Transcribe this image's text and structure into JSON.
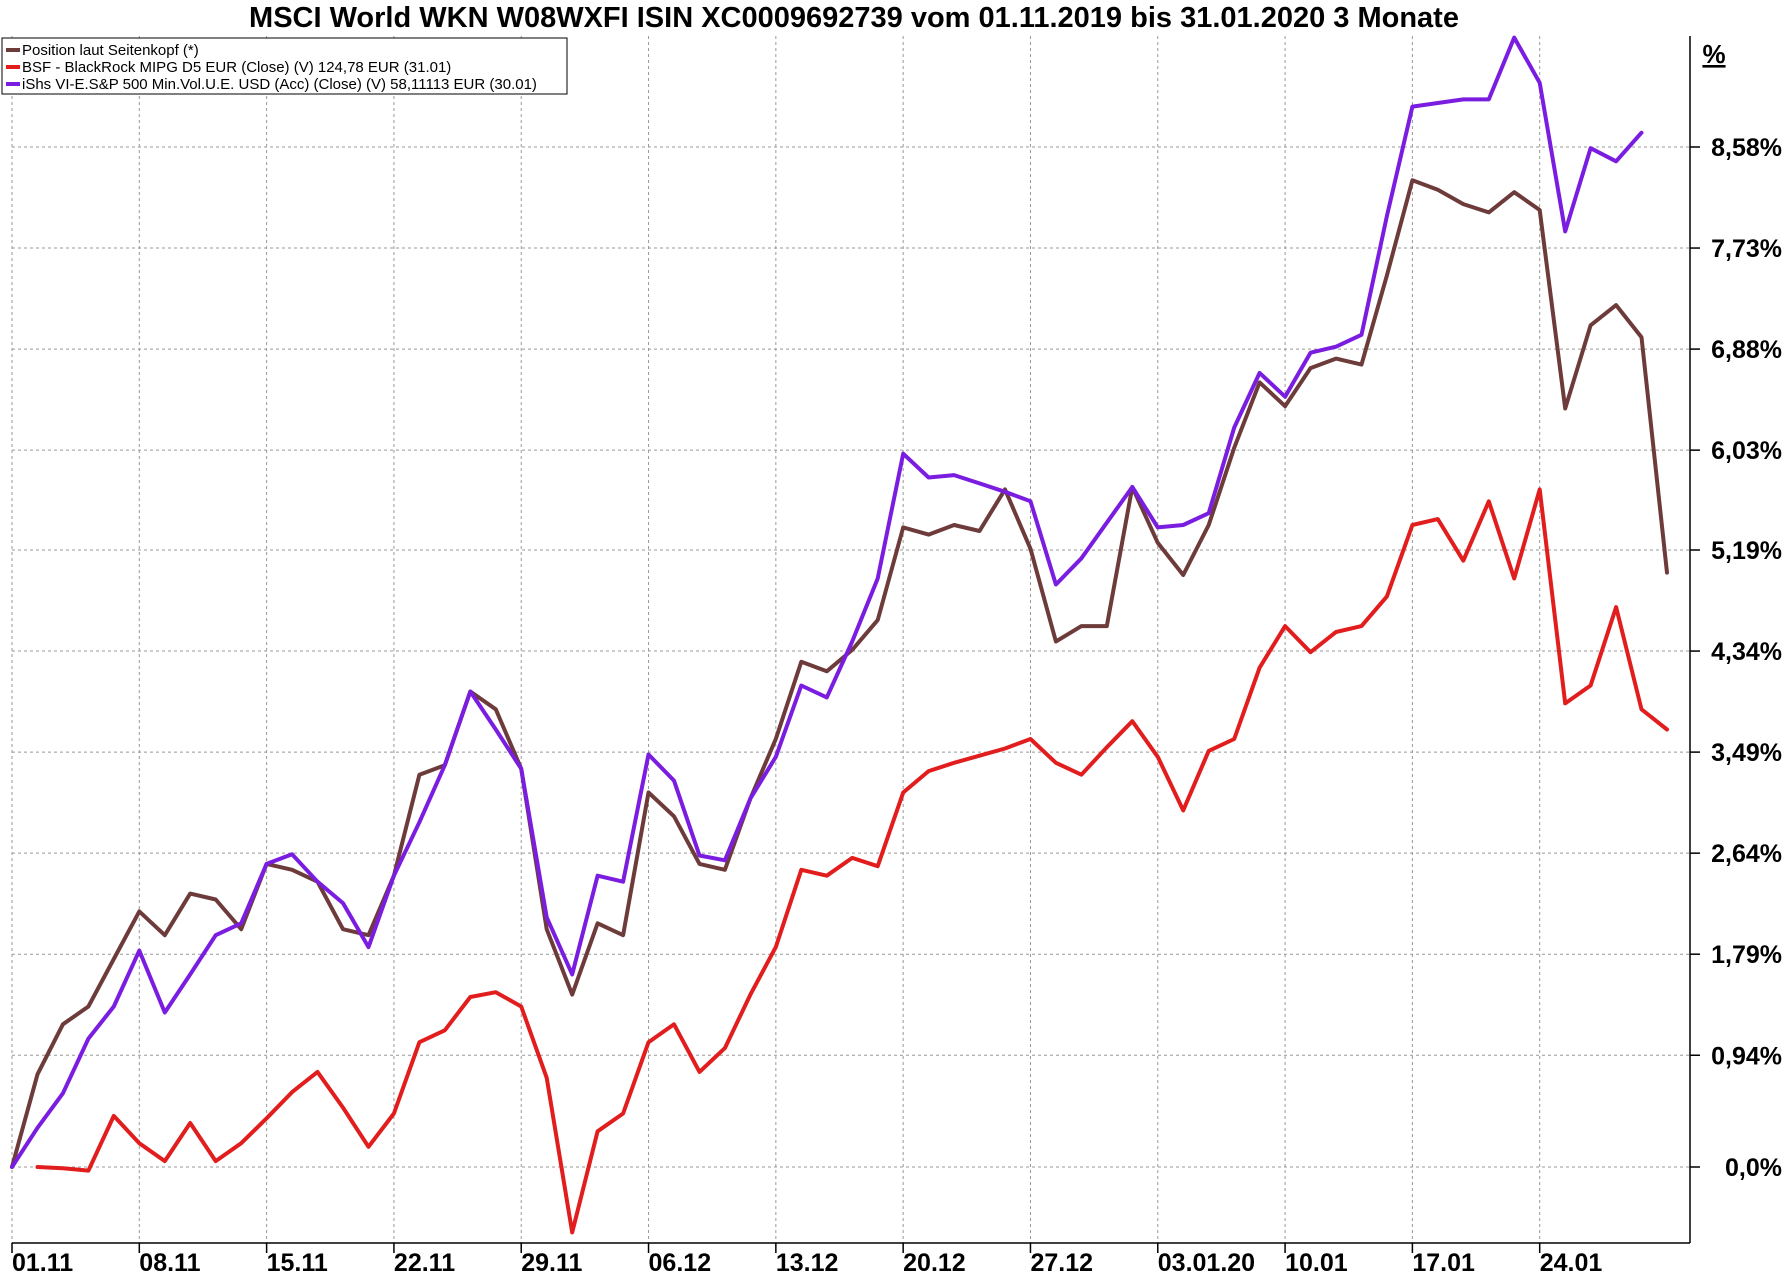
{
  "chart_data": {
    "type": "line",
    "title": "MSCI World WKN W08WXFI ISIN XC0009692739 vom 01.11.2019 bis 31.01.2020 3 Monate",
    "yunit": "%",
    "ylim": [
      -0.55,
      9.9
    ],
    "yticks": [
      0.0,
      0.94,
      1.79,
      2.64,
      3.49,
      4.34,
      5.19,
      6.03,
      6.88,
      7.73,
      8.58
    ],
    "ytick_labels": [
      "0,0%",
      "0,94%",
      "1,79%",
      "2,64%",
      "3,49%",
      "4,34%",
      "5,19%",
      "6,03%",
      "6,88%",
      "7,73%",
      "8,58%"
    ],
    "xticks": [
      {
        "label": "01.11",
        "x": 0
      },
      {
        "label": "08.11",
        "x": 5
      },
      {
        "label": "15.11",
        "x": 10
      },
      {
        "label": "22.11",
        "x": 15
      },
      {
        "label": "29.11",
        "x": 20
      },
      {
        "label": "06.12",
        "x": 25
      },
      {
        "label": "13.12",
        "x": 30
      },
      {
        "label": "20.12",
        "x": 35
      },
      {
        "label": "27.12",
        "x": 40
      },
      {
        "label": "03.01.20",
        "x": 45
      },
      {
        "label": "10.01",
        "x": 50
      },
      {
        "label": "17.01",
        "x": 55
      },
      {
        "label": "24.01",
        "x": 60
      }
    ],
    "xlim": [
      0,
      65
    ],
    "grid": true,
    "legend_position": "top-left",
    "series": [
      {
        "name": "Position laut Seitenkopf (*)",
        "color": "#6e3b3b",
        "points": [
          [
            0,
            0.0
          ],
          [
            1,
            0.78
          ],
          [
            2,
            1.2
          ],
          [
            3,
            1.35
          ],
          [
            4,
            1.75
          ],
          [
            5,
            2.15
          ],
          [
            6,
            1.95
          ],
          [
            7,
            2.3
          ],
          [
            8,
            2.25
          ],
          [
            9,
            2.0
          ],
          [
            10,
            2.55
          ],
          [
            11,
            2.5
          ],
          [
            12,
            2.4
          ],
          [
            13,
            2.0
          ],
          [
            14,
            1.95
          ],
          [
            15,
            2.45
          ],
          [
            16,
            3.3
          ],
          [
            17,
            3.38
          ],
          [
            18,
            4.0
          ],
          [
            19,
            3.85
          ],
          [
            20,
            3.35
          ],
          [
            21,
            2.0
          ],
          [
            22,
            1.45
          ],
          [
            23,
            2.05
          ],
          [
            24,
            1.95
          ],
          [
            25,
            3.15
          ],
          [
            26,
            2.95
          ],
          [
            27,
            2.55
          ],
          [
            28,
            2.5
          ],
          [
            29,
            3.1
          ],
          [
            30,
            3.6
          ],
          [
            31,
            4.25
          ],
          [
            32,
            4.17
          ],
          [
            33,
            4.35
          ],
          [
            34,
            4.6
          ],
          [
            35,
            5.38
          ],
          [
            36,
            5.32
          ],
          [
            37,
            5.4
          ],
          [
            38,
            5.35
          ],
          [
            39,
            5.7
          ],
          [
            40,
            5.2
          ],
          [
            41,
            4.42
          ],
          [
            42,
            4.55
          ],
          [
            43,
            4.55
          ],
          [
            44,
            5.72
          ],
          [
            45,
            5.25
          ],
          [
            46,
            4.98
          ],
          [
            47,
            5.4
          ],
          [
            48,
            6.05
          ],
          [
            49,
            6.6
          ],
          [
            50,
            6.4
          ],
          [
            51,
            6.72
          ],
          [
            52,
            6.8
          ],
          [
            53,
            6.75
          ],
          [
            54,
            7.5
          ],
          [
            55,
            8.3
          ],
          [
            56,
            8.22
          ],
          [
            57,
            8.1
          ],
          [
            58,
            8.03
          ],
          [
            59,
            8.2
          ],
          [
            60,
            8.05
          ],
          [
            61,
            6.38
          ],
          [
            62,
            7.08
          ],
          [
            63,
            7.25
          ],
          [
            64,
            6.98
          ],
          [
            65,
            5.0
          ]
        ]
      },
      {
        "name": "BSF - BlackRock MIPG D5 EUR (Close) (V) 124,78 EUR (31.01)",
        "color": "#e21d1d",
        "points": [
          [
            1,
            0.0
          ],
          [
            2,
            -0.01
          ],
          [
            3,
            -0.03
          ],
          [
            4,
            0.43
          ],
          [
            5,
            0.2
          ],
          [
            6,
            0.05
          ],
          [
            7,
            0.37
          ],
          [
            8,
            0.05
          ],
          [
            9,
            0.2
          ],
          [
            10,
            0.41
          ],
          [
            11,
            0.63
          ],
          [
            12,
            0.8
          ],
          [
            13,
            0.5
          ],
          [
            14,
            0.17
          ],
          [
            15,
            0.45
          ],
          [
            16,
            1.05
          ],
          [
            17,
            1.15
          ],
          [
            18,
            1.43
          ],
          [
            19,
            1.47
          ],
          [
            20,
            1.35
          ],
          [
            21,
            0.75
          ],
          [
            22,
            -0.55
          ],
          [
            23,
            0.3
          ],
          [
            24,
            0.45
          ],
          [
            25,
            1.05
          ],
          [
            26,
            1.2
          ],
          [
            27,
            0.8
          ],
          [
            28,
            1.0
          ],
          [
            29,
            1.45
          ],
          [
            30,
            1.85
          ],
          [
            31,
            2.5
          ],
          [
            32,
            2.45
          ],
          [
            33,
            2.6
          ],
          [
            34,
            2.53
          ],
          [
            35,
            3.15
          ],
          [
            36,
            3.33
          ],
          [
            37,
            3.4
          ],
          [
            38,
            3.46
          ],
          [
            39,
            3.52
          ],
          [
            40,
            3.6
          ],
          [
            41,
            3.4
          ],
          [
            42,
            3.3
          ],
          [
            43,
            3.53
          ],
          [
            44,
            3.75
          ],
          [
            45,
            3.45
          ],
          [
            46,
            3.0
          ],
          [
            47,
            3.5
          ],
          [
            48,
            3.6
          ],
          [
            49,
            4.2
          ],
          [
            50,
            4.55
          ],
          [
            51,
            4.33
          ],
          [
            52,
            4.5
          ],
          [
            53,
            4.55
          ],
          [
            54,
            4.8
          ],
          [
            55,
            5.4
          ],
          [
            56,
            5.45
          ],
          [
            57,
            5.1
          ],
          [
            58,
            5.6
          ],
          [
            59,
            4.95
          ],
          [
            60,
            5.7
          ],
          [
            61,
            3.9
          ],
          [
            62,
            4.05
          ],
          [
            63,
            4.71
          ],
          [
            64,
            3.85
          ],
          [
            65,
            3.68
          ]
        ]
      },
      {
        "name": "iShs VI-E.S&P 500 Min.Vol.U.E. USD (Acc) (Close) (V) 58,11113 EUR (30.01)",
        "color": "#7a1de0",
        "points": [
          [
            0,
            0.0
          ],
          [
            1,
            0.33
          ],
          [
            2,
            0.62
          ],
          [
            3,
            1.08
          ],
          [
            4,
            1.35
          ],
          [
            5,
            1.82
          ],
          [
            6,
            1.3
          ],
          [
            7,
            1.62
          ],
          [
            8,
            1.95
          ],
          [
            9,
            2.05
          ],
          [
            10,
            2.55
          ],
          [
            11,
            2.63
          ],
          [
            12,
            2.4
          ],
          [
            13,
            2.22
          ],
          [
            14,
            1.85
          ],
          [
            15,
            2.45
          ],
          [
            16,
            2.9
          ],
          [
            17,
            3.38
          ],
          [
            18,
            4.0
          ],
          [
            19,
            3.68
          ],
          [
            20,
            3.35
          ],
          [
            21,
            2.1
          ],
          [
            22,
            1.62
          ],
          [
            23,
            2.45
          ],
          [
            24,
            2.4
          ],
          [
            25,
            3.47
          ],
          [
            26,
            3.25
          ],
          [
            27,
            2.62
          ],
          [
            28,
            2.58
          ],
          [
            29,
            3.1
          ],
          [
            30,
            3.45
          ],
          [
            31,
            4.05
          ],
          [
            32,
            3.95
          ],
          [
            33,
            4.42
          ],
          [
            34,
            4.95
          ],
          [
            35,
            6.0
          ],
          [
            36,
            5.8
          ],
          [
            37,
            5.82
          ],
          [
            38,
            5.75
          ],
          [
            39,
            5.68
          ],
          [
            40,
            5.6
          ],
          [
            41,
            4.9
          ],
          [
            42,
            5.12
          ],
          [
            43,
            5.42
          ],
          [
            44,
            5.72
          ],
          [
            45,
            5.38
          ],
          [
            46,
            5.4
          ],
          [
            47,
            5.5
          ],
          [
            48,
            6.22
          ],
          [
            49,
            6.68
          ],
          [
            50,
            6.48
          ],
          [
            51,
            6.85
          ],
          [
            52,
            6.9
          ],
          [
            53,
            7.0
          ],
          [
            54,
            8.0
          ],
          [
            55,
            8.92
          ],
          [
            56,
            8.95
          ],
          [
            57,
            8.98
          ],
          [
            58,
            8.98
          ],
          [
            59,
            9.5
          ],
          [
            60,
            9.12
          ],
          [
            61,
            7.87
          ],
          [
            62,
            8.57
          ],
          [
            63,
            8.46
          ],
          [
            64,
            8.7
          ]
        ]
      }
    ]
  }
}
